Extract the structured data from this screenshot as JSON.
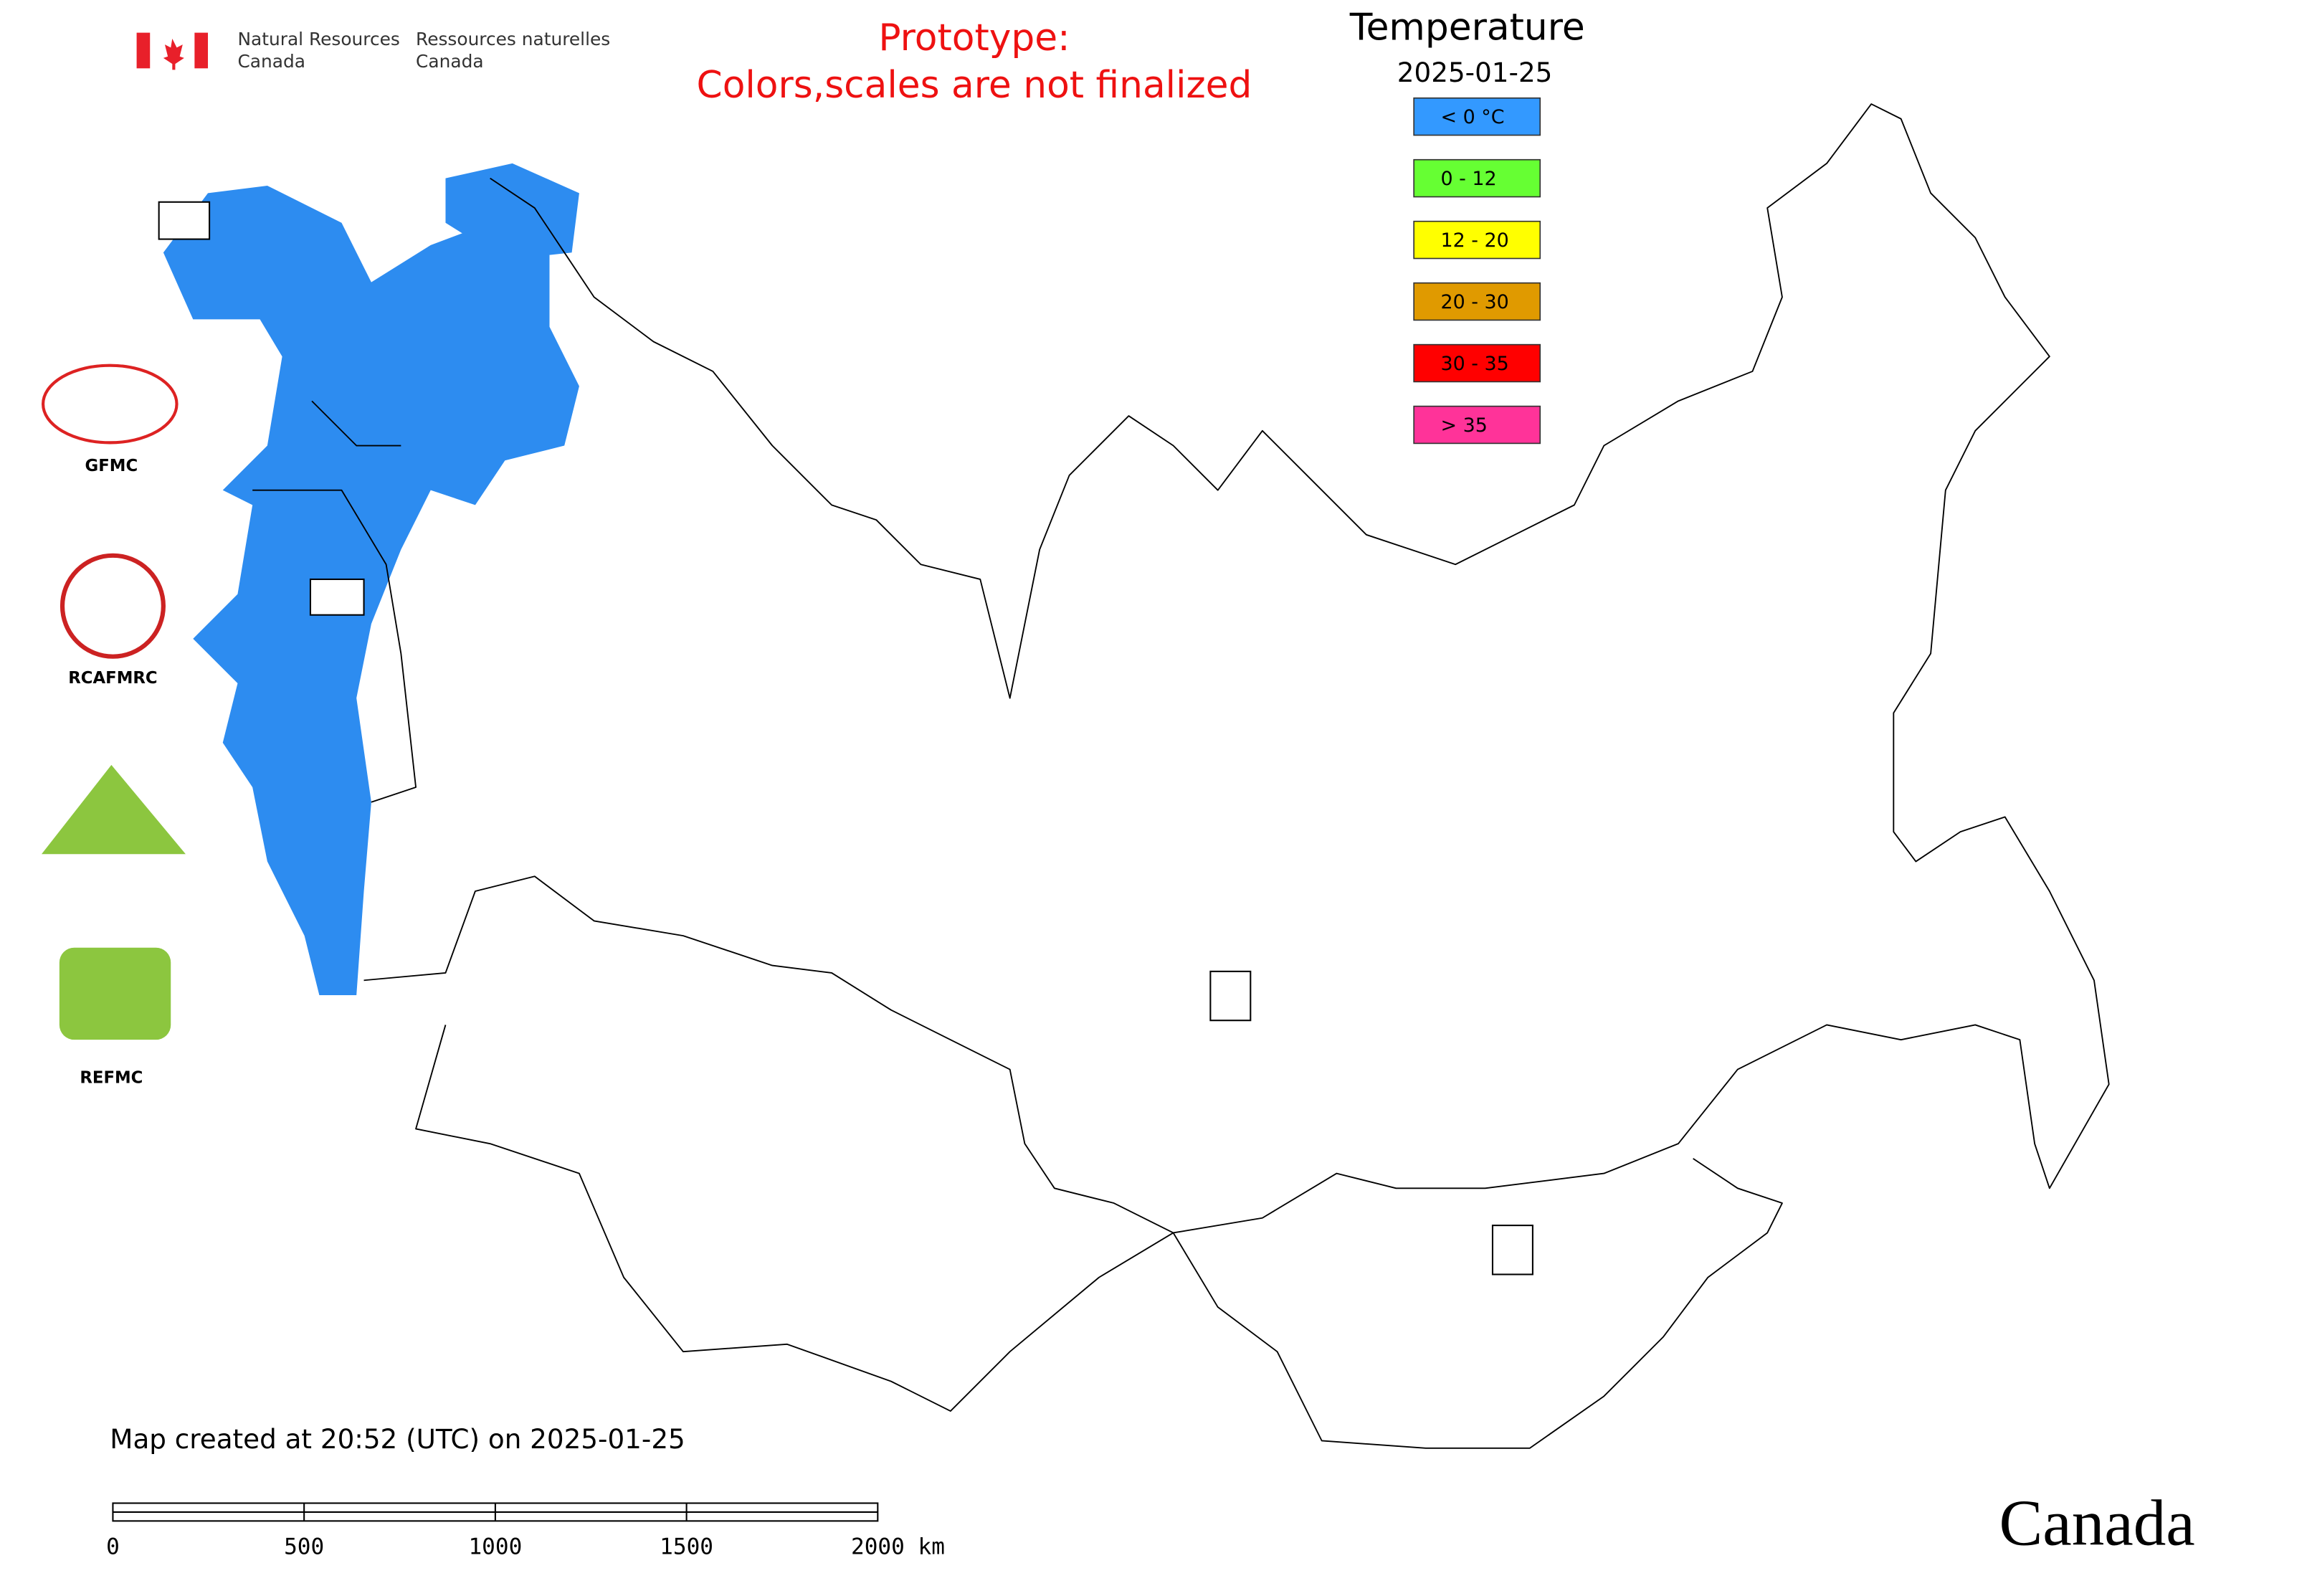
{
  "header": {
    "agency_en": [
      "Natural Resources",
      "Canada"
    ],
    "agency_fr": [
      "Ressources naturelles",
      "Canada"
    ],
    "notice": [
      "Prototype:",
      "Colors,scales are not finalized"
    ]
  },
  "legend": {
    "title": "Temperature",
    "date": "2025-01-25",
    "items": [
      {
        "label": "< 0 °C",
        "color": "#3399ff"
      },
      {
        "label": "0 - 12",
        "color": "#66ff33"
      },
      {
        "label": "12 - 20",
        "color": "#ffff00"
      },
      {
        "label": "20 - 30",
        "color": "#e09a00"
      },
      {
        "label": "30 - 35",
        "color": "#ff0000"
      },
      {
        "label": "> 35",
        "color": "#ff3399"
      }
    ]
  },
  "logos": [
    "GFMC",
    "RCAFMRC",
    "REFMC"
  ],
  "footer": {
    "created": "Map created at 20:52 (UTC) on 2025-01-25",
    "scale_labels": [
      "0",
      "500",
      "1000",
      "1500",
      "2000 km"
    ],
    "wordmark": "Canada"
  }
}
